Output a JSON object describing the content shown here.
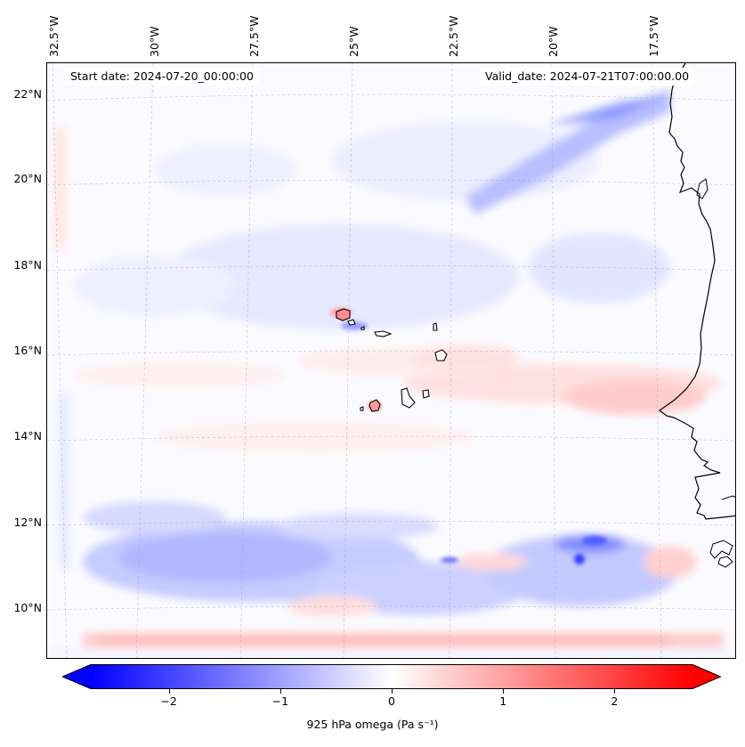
{
  "header": {
    "start_date": "Start date: 2024-07-20_00:00:00",
    "valid_date": "Valid_date: 2024-07-21T07:00:00.00"
  },
  "lon_labels": [
    "32.5°W",
    "30°W",
    "27.5°W",
    "25°W",
    "22.5°W",
    "20°W",
    "17.5°W"
  ],
  "lat_labels": [
    "22°N",
    "20°N",
    "18°N",
    "16°N",
    "14°N",
    "12°N",
    "10°N"
  ],
  "colorbar": {
    "vmin": -2.7,
    "vmax": 2.7,
    "ticks": [
      -2,
      -1,
      0,
      1,
      2
    ],
    "tick_labels": [
      "−2",
      "−1",
      "0",
      "1",
      "2"
    ],
    "title": "925 hPa omega (Pa s⁻¹)",
    "low_color": "#0000ff",
    "mid_color": "#ffffff",
    "high_color": "#ff0000"
  },
  "map": {
    "field": "925 hPa omega",
    "units": "Pa s⁻¹",
    "lon_range": [
      -33,
      -15.5
    ],
    "lat_range": [
      9,
      22.5
    ]
  }
}
